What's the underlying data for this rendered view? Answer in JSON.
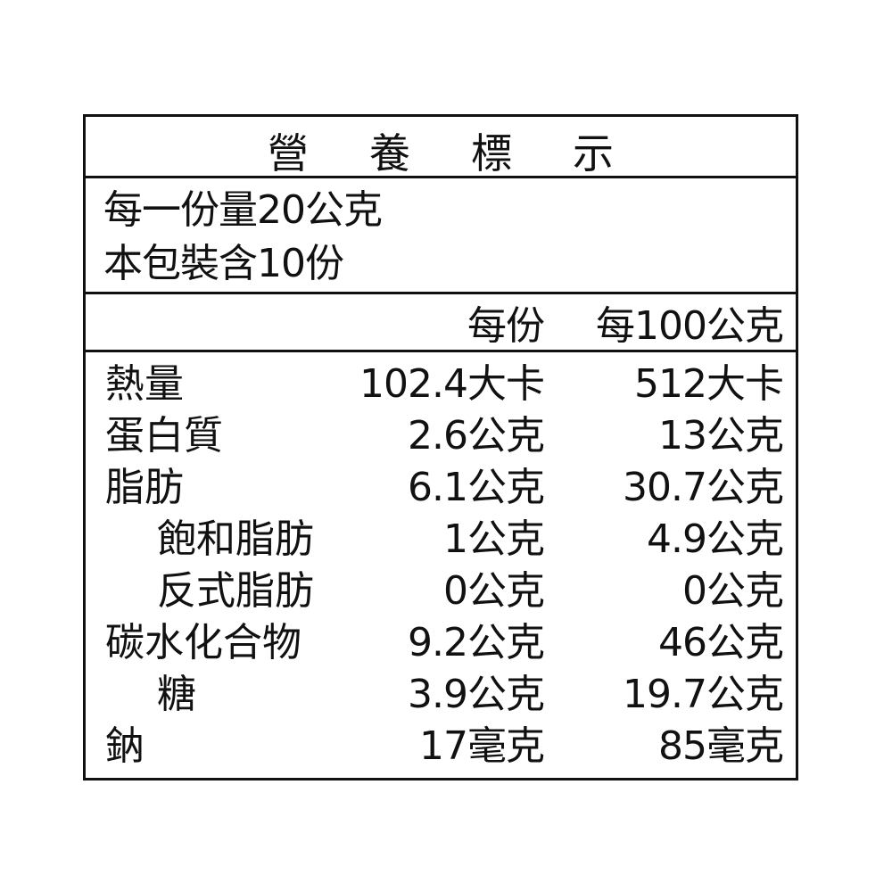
{
  "title": "營養標示",
  "serving": {
    "size": "每一份量20公克",
    "count": "本包裝含10份"
  },
  "columns": {
    "per_serving": "每份",
    "per_100g": "每100公克"
  },
  "rows": [
    {
      "label": "熱量",
      "per_serving": "102.4大卡",
      "per_100g": "512大卡",
      "indent": false
    },
    {
      "label": "蛋白質",
      "per_serving": "2.6公克",
      "per_100g": "13公克",
      "indent": false
    },
    {
      "label": "脂肪",
      "per_serving": "6.1公克",
      "per_100g": "30.7公克",
      "indent": false
    },
    {
      "label": "飽和脂肪",
      "per_serving": "1公克",
      "per_100g": "4.9公克",
      "indent": true
    },
    {
      "label": "反式脂肪",
      "per_serving": "0公克",
      "per_100g": "0公克",
      "indent": true
    },
    {
      "label": "碳水化合物",
      "per_serving": "9.2公克",
      "per_100g": "46公克",
      "indent": false
    },
    {
      "label": "糖",
      "per_serving": "3.9公克",
      "per_100g": "19.7公克",
      "indent": true
    },
    {
      "label": "鈉",
      "per_serving": "17毫克",
      "per_100g": "85毫克",
      "indent": false
    }
  ]
}
